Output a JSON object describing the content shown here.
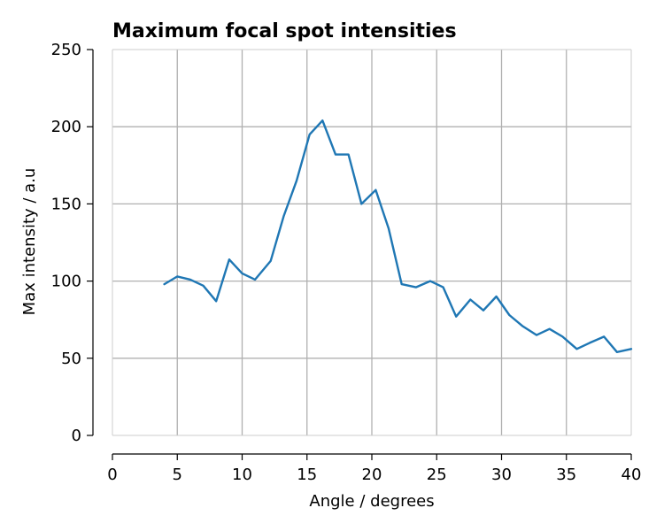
{
  "chart_data": {
    "type": "line",
    "title": "Maximum focal spot intensities",
    "xlabel": "Angle / degrees",
    "ylabel": "Max intensity / a.u",
    "xlim": [
      0,
      40
    ],
    "ylim": [
      0,
      250
    ],
    "x_ticks": [
      0,
      5,
      10,
      15,
      20,
      25,
      30,
      35,
      40
    ],
    "y_ticks": [
      0,
      50,
      100,
      150,
      200,
      250
    ],
    "x_tick_labels": [
      "0",
      "5",
      "10",
      "15",
      "20",
      "25",
      "30",
      "35",
      "40"
    ],
    "y_tick_labels": [
      "0",
      "50",
      "100",
      "150",
      "200",
      "250"
    ],
    "grid": true,
    "line_color": "#1f77b4",
    "grid_color": "#b0b0b0",
    "series": [
      {
        "x": [
          4,
          5,
          6,
          7,
          8,
          9,
          10,
          11,
          12.2,
          13.2,
          14.2,
          15.2,
          16.2,
          17.2,
          18.2,
          19.2,
          20.3,
          21.3,
          22.3,
          23.4,
          24.5,
          25.5,
          26.5,
          27.6,
          28.6,
          29.6,
          30.6,
          31.6,
          32.7,
          33.7,
          34.7,
          35.8,
          36.8,
          37.9,
          38.9,
          40
        ],
        "y": [
          98,
          103,
          101,
          97,
          87,
          114,
          105,
          101,
          113,
          142,
          165,
          195,
          204,
          182,
          182,
          150,
          159,
          134,
          98,
          96,
          100,
          96,
          77,
          88,
          81,
          90,
          78,
          71,
          65,
          69,
          64,
          56,
          60,
          64,
          54,
          56
        ]
      }
    ]
  }
}
